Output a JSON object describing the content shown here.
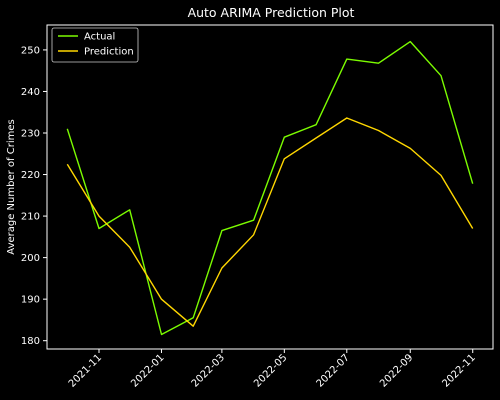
{
  "chart_data": {
    "type": "line",
    "title": "Auto ARIMA Prediction Plot",
    "xlabel": "",
    "ylabel": "Average Number of Crimes",
    "x": [
      "2021-10-01",
      "2021-11-01",
      "2021-12-01",
      "2022-01-01",
      "2022-02-01",
      "2022-03-01",
      "2022-04-01",
      "2022-05-01",
      "2022-06-01",
      "2022-07-01",
      "2022-08-01",
      "2022-09-01",
      "2022-10-01",
      "2022-11-01"
    ],
    "x_ticks": [
      "2021-11",
      "2022-01",
      "2022-03",
      "2022-05",
      "2022-07",
      "2022-09",
      "2022-11"
    ],
    "y_ticks": [
      180,
      190,
      200,
      210,
      220,
      230,
      240,
      250
    ],
    "ylim": [
      178,
      256
    ],
    "grid": false,
    "legend": "top-left",
    "series": [
      {
        "name": "Actual",
        "color": "#7cfc00",
        "values": [
          231.0,
          207.0,
          211.5,
          181.5,
          185.5,
          206.5,
          209.0,
          229.0,
          232.0,
          247.8,
          246.8,
          252.0,
          243.8,
          217.8
        ]
      },
      {
        "name": "Prediction",
        "color": "#ffd700",
        "values": [
          222.5,
          210.0,
          202.5,
          190.0,
          183.5,
          197.5,
          205.5,
          223.8,
          228.8,
          233.6,
          230.6,
          226.3,
          219.8,
          207.0
        ]
      }
    ]
  }
}
